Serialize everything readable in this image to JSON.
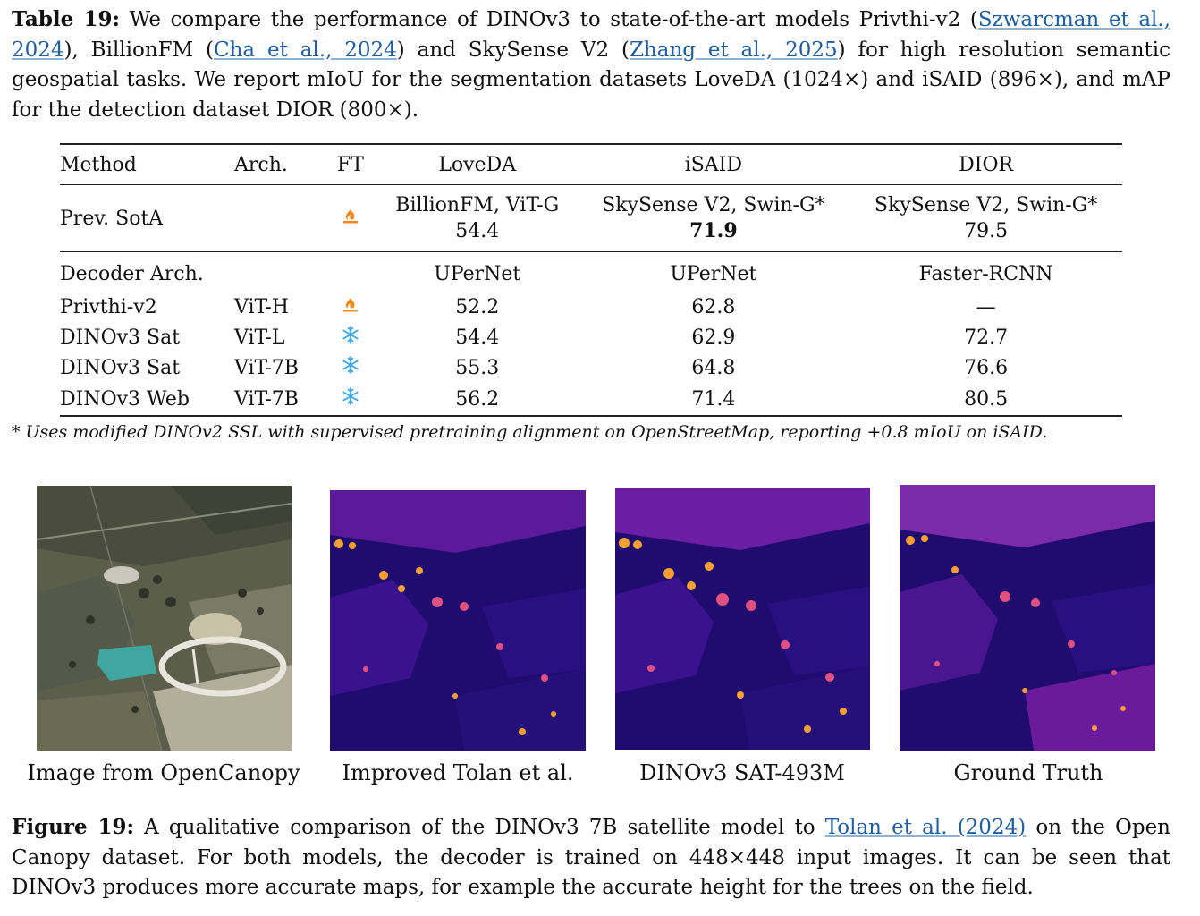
{
  "table_caption": {
    "label": "Table 19:",
    "text_1": "We compare the performance of DINOv3 to state-of-the-art models Privthi-v2 (",
    "cite_1": "Szwarcman et al., 2024",
    "text_2": "), BillionFM (",
    "cite_2": "Cha et al., 2024",
    "text_3": ") and SkySense V2 (",
    "cite_3": "Zhang et al., 2025",
    "text_4": ") for high resolution semantic geospatial tasks. We report mIoU for the segmentation datasets LoveDA (1024×) and iSAID (896×), and mAP for the detection dataset DIOR (800×)."
  },
  "table": {
    "headers": [
      "Method",
      "Arch.",
      "FT",
      "LoveDA",
      "iSAID",
      "DIOR"
    ],
    "sota": {
      "method": "Prev. SotA",
      "ft_icon": "fire-icon",
      "loveda_model": "BillionFM, ViT-G",
      "loveda_value": "54.4",
      "isaid_model": "SkySense V2, Swin-G*",
      "isaid_value": "71.9",
      "dior_model": "SkySense V2, Swin-G*",
      "dior_value": "79.5"
    },
    "decoder": {
      "label": "Decoder Arch.",
      "loveda": "UPerNet",
      "isaid": "UPerNet",
      "dior": "Faster-RCNN"
    },
    "rows": [
      {
        "method": "Privthi-v2",
        "arch": "ViT-H",
        "ft_icon": "fire-icon",
        "loveda": "52.2",
        "isaid": "62.8",
        "dior": "—"
      },
      {
        "method": "DINOv3 Sat",
        "arch": "ViT-L",
        "ft_icon": "snowflake-icon",
        "loveda": "54.4",
        "isaid": "62.9",
        "dior": "72.7"
      },
      {
        "method": "DINOv3 Sat",
        "arch": "ViT-7B",
        "ft_icon": "snowflake-icon",
        "loveda": "55.3",
        "isaid": "64.8",
        "dior": "76.6"
      },
      {
        "method": "DINOv3 Web",
        "arch": "ViT-7B",
        "ft_icon": "snowflake-icon",
        "loveda": "56.2",
        "isaid": "71.4",
        "dior": "80.5"
      }
    ],
    "footnote": "* Uses modified DINOv2 SSL with supervised pretraining alignment on OpenStreetMap, reporting +0.8 mIoU on iSAID."
  },
  "figure": {
    "panels": [
      {
        "label": "Image from OpenCanopy"
      },
      {
        "label": "Improved Tolan et al."
      },
      {
        "label": "DINOv3 SAT-493M"
      },
      {
        "label": "Ground Truth"
      }
    ],
    "colors": {
      "heatmap_low": "#1f0c6e",
      "heatmap_mid": "#7a1fa0",
      "heatmap_high": "#f7a030",
      "satellite_field": "#5b5e4a",
      "pond": "#3fa7a0"
    }
  },
  "figure_caption": {
    "label": "Figure 19:",
    "text_1": "A qualitative comparison of the DINOv3 7B satellite model to ",
    "cite_1": "Tolan et al. (2024)",
    "text_2": " on the Open Canopy dataset. For both models, the decoder is trained on 448×448 input images. It can be seen that DINOv3 produces more accurate maps, for example the accurate height for the trees on the field."
  }
}
